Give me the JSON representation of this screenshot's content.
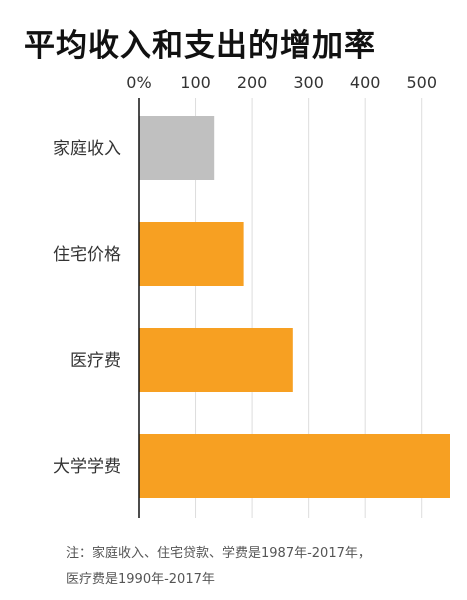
{
  "chart_data": {
    "type": "bar",
    "orientation": "horizontal",
    "title": "平均收入和支出的增加率",
    "categories": [
      "家庭收入",
      "住宅价格",
      "医疗费",
      "大学学费"
    ],
    "values": [
      133,
      185,
      272,
      550
    ],
    "bar_colors": [
      "#c0c0c0",
      "#f7a022",
      "#f7a022",
      "#f7a022"
    ],
    "x_ticks": [
      "0%",
      "100",
      "200",
      "300",
      "400",
      "500"
    ],
    "x_tick_values": [
      0,
      100,
      200,
      300,
      400,
      500
    ],
    "xlim": [
      0,
      550
    ],
    "axis_position": "top",
    "grid": true
  },
  "note": {
    "line1": "注：家庭收入、住宅贷款、学费是1987年-2017年，",
    "line2": "医疗费是1990年-2017年"
  }
}
